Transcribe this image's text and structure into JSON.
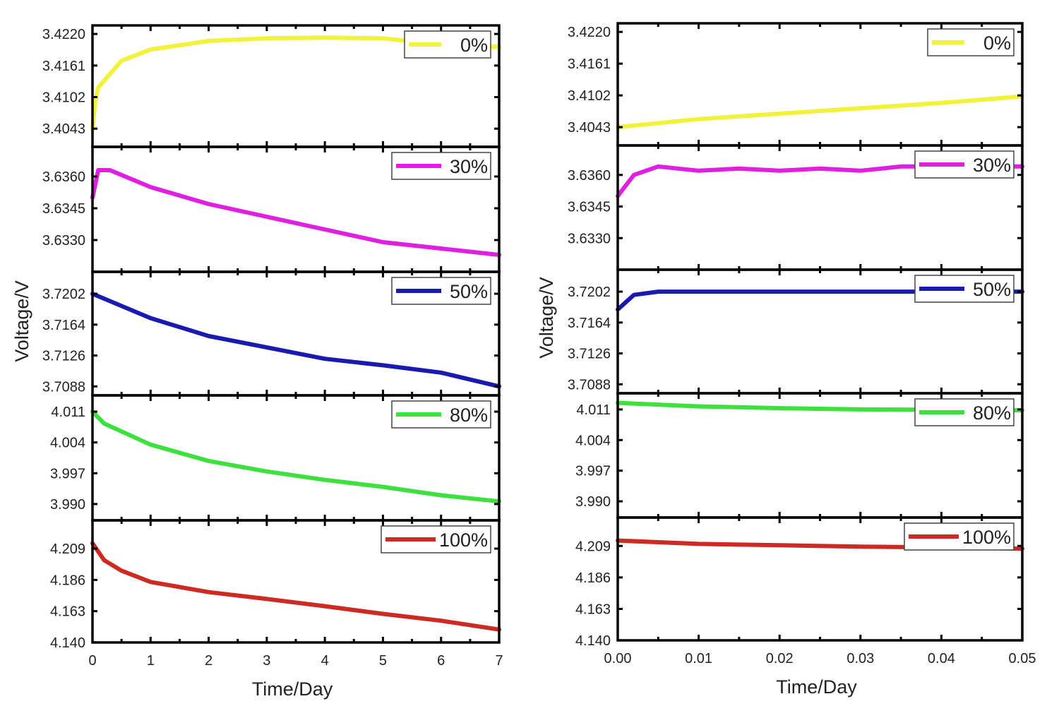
{
  "chart_data": [
    {
      "type": "line",
      "xlabel": "Time/Day",
      "ylabel": "Voltage/V",
      "xlim": [
        0,
        7
      ],
      "xticks": [
        "0",
        "1",
        "2",
        "3",
        "4",
        "5",
        "6",
        "7"
      ],
      "xtick_values": [
        0,
        1,
        2,
        3,
        4,
        5,
        6,
        7
      ],
      "panels": [
        {
          "name": "0%",
          "color": "#f2f23a",
          "ylim": [
            3.4009,
            3.4236
          ],
          "yticks": [
            "3.4220",
            "3.4161",
            "3.4102",
            "3.4043"
          ],
          "x": [
            0,
            0.05,
            0.1,
            0.5,
            1,
            2,
            3,
            4,
            5,
            6,
            7
          ],
          "y": [
            3.4043,
            3.4095,
            3.412,
            3.417,
            3.4191,
            3.4207,
            3.4212,
            3.4213,
            3.4212,
            3.42,
            3.4196
          ]
        },
        {
          "name": "30%",
          "color": "#e020e0",
          "ylim": [
            3.6315,
            3.6374
          ],
          "yticks": [
            "3.6360",
            "3.6345",
            "3.6330"
          ],
          "x": [
            0,
            0.1,
            0.3,
            1,
            2,
            3,
            4,
            5,
            6,
            7
          ],
          "y": [
            3.635,
            3.6363,
            3.6363,
            3.6355,
            3.6347,
            3.6341,
            3.6335,
            3.6329,
            3.6326,
            3.6323
          ]
        },
        {
          "name": "50%",
          "color": "#1a1ab0",
          "ylim": [
            3.7077,
            3.7229
          ],
          "yticks": [
            "3.7202",
            "3.7164",
            "3.7126",
            "3.7088"
          ],
          "x": [
            0,
            1,
            2,
            3,
            4,
            5,
            6,
            7
          ],
          "y": [
            3.7202,
            3.7172,
            3.715,
            3.7136,
            3.7122,
            3.7114,
            3.7105,
            3.7088
          ]
        },
        {
          "name": "80%",
          "color": "#3ee03e",
          "ylim": [
            3.9863,
            4.0147
          ],
          "yticks": [
            "4.011",
            "4.004",
            "3.997",
            "3.990"
          ],
          "x": [
            0,
            0.2,
            1,
            2,
            3,
            4,
            5,
            6,
            7
          ],
          "y": [
            4.011,
            4.0083,
            4.0035,
            3.9998,
            3.9974,
            3.9955,
            3.9939,
            3.992,
            3.9906
          ]
        },
        {
          "name": "100%",
          "color": "#cc2a22",
          "ylim": [
            4.14,
            4.2298
          ],
          "yticks": [
            "4.209",
            "4.186",
            "4.163",
            "4.140"
          ],
          "x": [
            0,
            0.2,
            0.5,
            1,
            2,
            3,
            4,
            5,
            6,
            7
          ],
          "y": [
            4.213,
            4.2005,
            4.1928,
            4.1845,
            4.177,
            4.172,
            4.1667,
            4.161,
            4.156,
            4.1495
          ]
        }
      ]
    },
    {
      "type": "line",
      "xlabel": "Time/Day",
      "ylabel": "Voltage/V",
      "xlim": [
        0,
        0.05
      ],
      "xticks": [
        "0.00",
        "0.01",
        "0.02",
        "0.03",
        "0.04",
        "0.05"
      ],
      "xtick_values": [
        0,
        0.01,
        0.02,
        0.03,
        0.04,
        0.05
      ],
      "panels": [
        {
          "name": "0%",
          "color": "#f2f23a",
          "ylim": [
            3.4009,
            3.4236
          ],
          "yticks": [
            "3.4220",
            "3.4161",
            "3.4102",
            "3.4043"
          ],
          "x": [
            0,
            0.01,
            0.02,
            0.03,
            0.04,
            0.05
          ],
          "y": [
            3.4043,
            3.4058,
            3.4068,
            3.4078,
            3.4088,
            3.41
          ]
        },
        {
          "name": "30%",
          "color": "#e020e0",
          "ylim": [
            3.6315,
            3.6374
          ],
          "yticks": [
            "3.6360",
            "3.6345",
            "3.6330"
          ],
          "x": [
            0,
            0.002,
            0.005,
            0.01,
            0.015,
            0.02,
            0.025,
            0.03,
            0.035,
            0.04,
            0.045,
            0.05
          ],
          "y": [
            3.635,
            3.636,
            3.6364,
            3.6362,
            3.6363,
            3.6362,
            3.6363,
            3.6362,
            3.6364,
            3.6364,
            3.6364,
            3.6364
          ]
        },
        {
          "name": "50%",
          "color": "#1a1ab0",
          "ylim": [
            3.7077,
            3.7229
          ],
          "yticks": [
            "3.7202",
            "3.7164",
            "3.7126",
            "3.7088"
          ],
          "x": [
            0,
            0.002,
            0.005,
            0.01,
            0.02,
            0.03,
            0.04,
            0.05
          ],
          "y": [
            3.718,
            3.7198,
            3.7202,
            3.7202,
            3.7202,
            3.7202,
            3.7202,
            3.7202
          ]
        },
        {
          "name": "80%",
          "color": "#3ee03e",
          "ylim": [
            3.9863,
            4.0147
          ],
          "yticks": [
            "4.011",
            "4.004",
            "3.997",
            "3.990"
          ],
          "x": [
            0,
            0.01,
            0.02,
            0.03,
            0.04,
            0.05
          ],
          "y": [
            4.0125,
            4.0117,
            4.0113,
            4.011,
            4.0109,
            4.0108
          ]
        },
        {
          "name": "100%",
          "color": "#cc2a22",
          "ylim": [
            4.14,
            4.2298
          ],
          "yticks": [
            "4.209",
            "4.186",
            "4.163",
            "4.140"
          ],
          "x": [
            0,
            0.01,
            0.02,
            0.03,
            0.04,
            0.05
          ],
          "y": [
            4.213,
            4.2105,
            4.2095,
            4.2085,
            4.208,
            4.207
          ]
        }
      ]
    }
  ]
}
